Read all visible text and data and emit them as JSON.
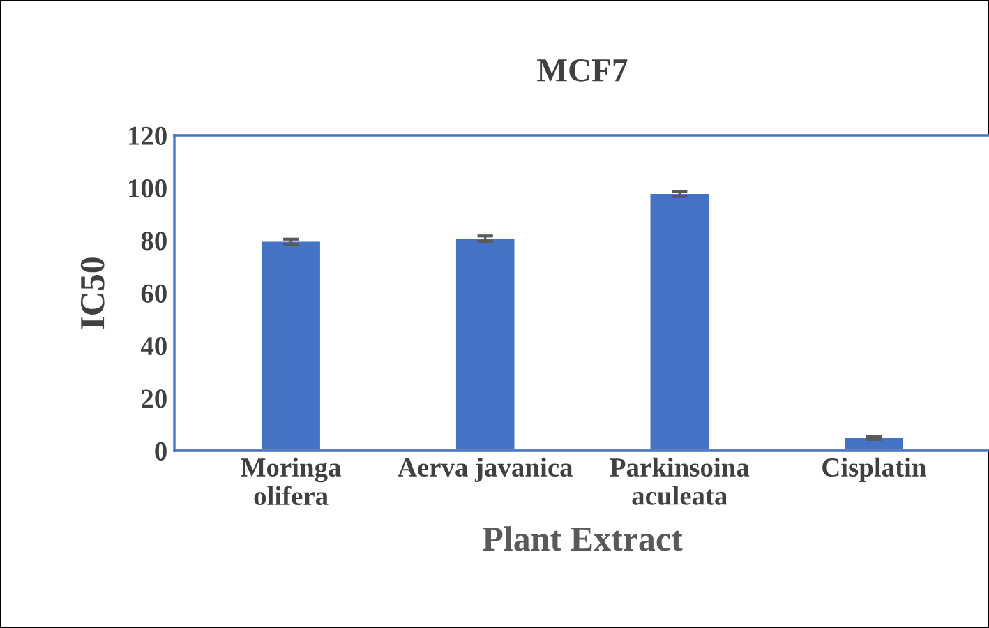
{
  "chart_data": {
    "type": "bar",
    "title": "MCF7",
    "xlabel": "Plant Extract",
    "ylabel": "IC50",
    "categories": [
      "Moringa\nolifera",
      "Aerva javanica",
      "Parkinsoina\naculeata",
      "Cisplatin"
    ],
    "values": [
      79.5,
      80.7,
      97.7,
      4.8
    ],
    "errors": [
      1,
      1,
      1,
      0.5
    ],
    "color": "#4472c4",
    "ylim": [
      0,
      120
    ],
    "yticks": [
      0,
      20,
      40,
      60,
      80,
      100,
      120
    ],
    "grid": false
  }
}
